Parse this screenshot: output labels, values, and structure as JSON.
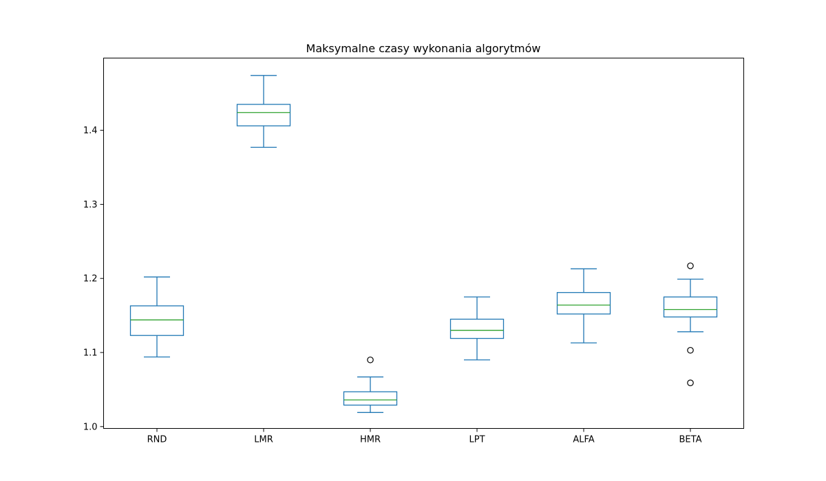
{
  "chart_data": {
    "type": "boxplot",
    "title": "Maksymalne czasy wykonania algorytmów",
    "xlabel": "",
    "ylabel": "",
    "ylim": [
      0.9975,
      1.4975
    ],
    "yticks": [
      1.0,
      1.1,
      1.2,
      1.3,
      1.4
    ],
    "ytick_labels": [
      "1.0",
      "1.1",
      "1.2",
      "1.3",
      "1.4"
    ],
    "categories": [
      "RND",
      "LMR",
      "HMR",
      "LPT",
      "ALFA",
      "BETA"
    ],
    "boxes": [
      {
        "label": "RND",
        "whisker_low": 1.094,
        "q1": 1.123,
        "median": 1.144,
        "q3": 1.163,
        "whisker_high": 1.202,
        "outliers": []
      },
      {
        "label": "LMR",
        "whisker_low": 1.377,
        "q1": 1.406,
        "median": 1.424,
        "q3": 1.435,
        "whisker_high": 1.474,
        "outliers": []
      },
      {
        "label": "HMR",
        "whisker_low": 1.019,
        "q1": 1.029,
        "median": 1.036,
        "q3": 1.047,
        "whisker_high": 1.067,
        "outliers": [
          1.09
        ]
      },
      {
        "label": "LPT",
        "whisker_low": 1.09,
        "q1": 1.119,
        "median": 1.13,
        "q3": 1.145,
        "whisker_high": 1.175,
        "outliers": []
      },
      {
        "label": "ALFA",
        "whisker_low": 1.113,
        "q1": 1.152,
        "median": 1.164,
        "q3": 1.181,
        "whisker_high": 1.213,
        "outliers": []
      },
      {
        "label": "BETA",
        "whisker_low": 1.128,
        "q1": 1.148,
        "median": 1.158,
        "q3": 1.175,
        "whisker_high": 1.199,
        "outliers": [
          1.217,
          1.103,
          1.059
        ]
      }
    ],
    "colors": {
      "box": "#1f77b4",
      "median": "#2ca02c",
      "outlier_edge": "#000000",
      "axes": "#000000"
    },
    "grid": false,
    "legend": "none"
  }
}
